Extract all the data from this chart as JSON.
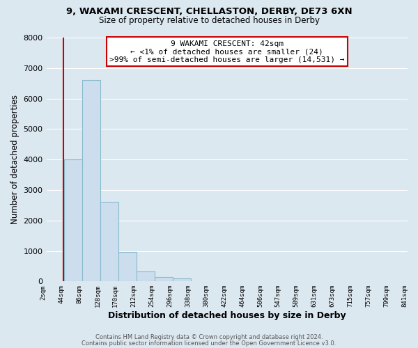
{
  "title_line1": "9, WAKAMI CRESCENT, CHELLASTON, DERBY, DE73 6XN",
  "title_line2": "Size of property relative to detached houses in Derby",
  "xlabel": "Distribution of detached houses by size in Derby",
  "ylabel": "Number of detached properties",
  "bar_edges": [
    2,
    44,
    86,
    128,
    170,
    212,
    254,
    296,
    338,
    380,
    422,
    464,
    506,
    547,
    589,
    631,
    673,
    715,
    757,
    799,
    841
  ],
  "bar_heights": [
    0,
    4000,
    6600,
    2600,
    975,
    330,
    140,
    90,
    0,
    0,
    0,
    0,
    0,
    0,
    0,
    0,
    0,
    0,
    0,
    0
  ],
  "bar_color": "#ccdded",
  "bar_edgecolor": "#88bbcc",
  "property_line_x": 42,
  "property_line_color": "#cc0000",
  "annotation_text": "9 WAKAMI CRESCENT: 42sqm\n← <1% of detached houses are smaller (24)\n>99% of semi-detached houses are larger (14,531) →",
  "annotation_box_edgecolor": "#cc0000",
  "annotation_box_facecolor": "#ffffff",
  "ylim": [
    0,
    8000
  ],
  "yticks": [
    0,
    1000,
    2000,
    3000,
    4000,
    5000,
    6000,
    7000,
    8000
  ],
  "tick_labels": [
    "2sqm",
    "44sqm",
    "86sqm",
    "128sqm",
    "170sqm",
    "212sqm",
    "254sqm",
    "296sqm",
    "338sqm",
    "380sqm",
    "422sqm",
    "464sqm",
    "506sqm",
    "547sqm",
    "589sqm",
    "631sqm",
    "673sqm",
    "715sqm",
    "757sqm",
    "799sqm",
    "841sqm"
  ],
  "footer_line1": "Contains HM Land Registry data © Crown copyright and database right 2024.",
  "footer_line2": "Contains public sector information licensed under the Open Government Licence v3.0.",
  "bg_color": "#dce8f0",
  "plot_bg_color": "#dce8f0",
  "grid_color": "#ffffff"
}
